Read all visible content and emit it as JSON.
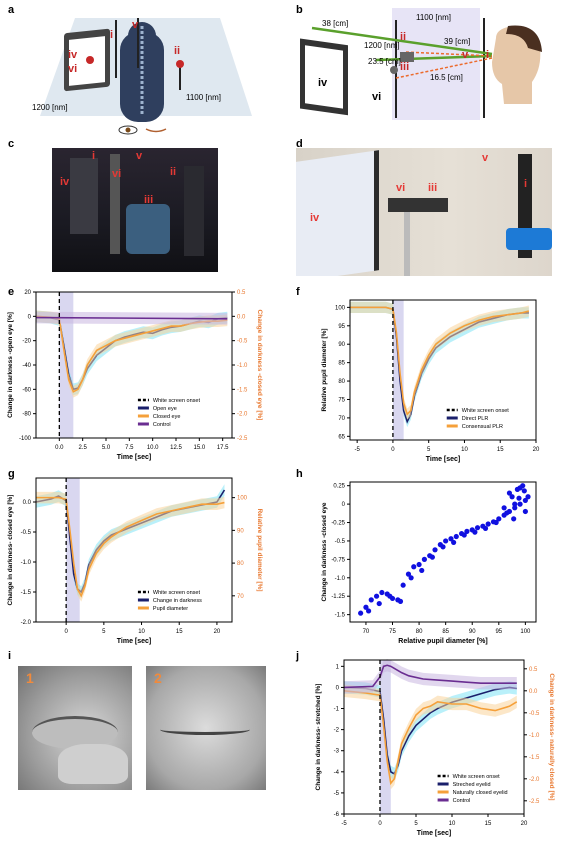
{
  "labels": {
    "a": "a",
    "b": "b",
    "c": "c",
    "d": "d",
    "e": "e",
    "f": "f",
    "g": "g",
    "h": "h",
    "i": "i",
    "j": "j"
  },
  "diagram_a": {
    "dim_left": "1200 [nm]",
    "dim_right": "1100 [nm]",
    "marks": {
      "iv": "iv",
      "vi": "vi",
      "i": "i",
      "v": "v",
      "ii": "ii"
    }
  },
  "diagram_b": {
    "d38": "38 [cm]",
    "d1100": "1100 [nm]",
    "d39": "39 [cm]",
    "d1200": "1200 [nm]",
    "d235": "23.5 [cm]",
    "d165": "16.5 [cm]",
    "marks": {
      "ii": "ii",
      "v": "v",
      "iii": "iii",
      "i": "i",
      "iv": "iv",
      "vi": "vi"
    }
  },
  "photo_c": {
    "marks": {
      "i": "i",
      "v": "v",
      "iv": "iv",
      "vi": "vi",
      "ii": "ii",
      "iii": "iii"
    }
  },
  "photo_d": {
    "marks": {
      "v": "v",
      "iv": "iv",
      "vi": "vi",
      "iii": "iii",
      "i": "i"
    }
  },
  "photo_i": {
    "marks": {
      "one": "1",
      "two": "2"
    }
  },
  "colors": {
    "navy": "#1a1f6b",
    "orange": "#f5a03a",
    "purple": "#6a2d91",
    "cyan": "#7fe3f5",
    "onset_band": "#c9c6ea",
    "scatter": "#1010e0",
    "right_axis_label": "#e8772e"
  },
  "chart_data": [
    {
      "id": "e",
      "type": "line",
      "xlabel": "Time [sec]",
      "ylabel": "Change in darkness -open eye [%]",
      "ylabel_right": "Change in darkness -closed eye [%]",
      "xlim": [
        -2.5,
        18.5
      ],
      "ylim": [
        -100,
        20
      ],
      "ylim_right": [
        -2.5,
        0.5
      ],
      "xticks": [
        "0.0",
        "2.5",
        "5.0",
        "7.5",
        "10.0",
        "12.5",
        "15.0",
        "17.5"
      ],
      "yticks": [
        "20",
        "0",
        "-20",
        "-40",
        "-60",
        "-80",
        "-100"
      ],
      "yticks_right": [
        "0.5",
        "0.0",
        "-0.5",
        "-1.0",
        "-1.5",
        "-2.0",
        "-2.5"
      ],
      "legend": [
        "White screen onset",
        "Open eye",
        "Closed eye",
        "Control"
      ],
      "legend_position": "lower-right",
      "onset_x": 0,
      "band": [
        0,
        1.5
      ],
      "series": [
        {
          "name": "Open eye",
          "axis": "left",
          "x": [
            -2.5,
            -1,
            0,
            0.5,
            1,
            1.5,
            2,
            2.5,
            3,
            4,
            5,
            6,
            7,
            8,
            9,
            10,
            11,
            12,
            13,
            14,
            15,
            16,
            17,
            18
          ],
          "y": [
            0,
            -1,
            -3,
            -25,
            -48,
            -60,
            -59,
            -52,
            -43,
            -32,
            -26,
            -20,
            -17,
            -15,
            -13,
            -14,
            -11,
            -9,
            -8,
            -6,
            -4,
            -5,
            -2,
            -1
          ]
        },
        {
          "name": "Closed eye",
          "axis": "right",
          "x": [
            -2.5,
            -1,
            0,
            0.5,
            1,
            1.5,
            2,
            2.5,
            3,
            4,
            5,
            6,
            7,
            8,
            9,
            10,
            11,
            12,
            13,
            14,
            15,
            16,
            17,
            18
          ],
          "y": [
            0,
            -0.02,
            -0.05,
            -0.7,
            -1.3,
            -1.55,
            -1.5,
            -1.3,
            -1.0,
            -0.7,
            -0.6,
            -0.5,
            -0.45,
            -0.4,
            -0.35,
            -0.3,
            -0.25,
            -0.2,
            -0.2,
            -0.15,
            -0.12,
            -0.1,
            -0.1,
            -0.08
          ]
        },
        {
          "name": "Control",
          "axis": "left",
          "x": [
            -2.5,
            18
          ],
          "y": [
            -1,
            -2
          ]
        }
      ]
    },
    {
      "id": "f",
      "type": "line",
      "xlabel": "Time [sec]",
      "ylabel": "Relative pupil diameter [%]",
      "xlim": [
        -6,
        20
      ],
      "ylim": [
        64,
        102
      ],
      "xticks": [
        "-5",
        "0",
        "5",
        "10",
        "15",
        "20"
      ],
      "yticks": [
        "100",
        "95",
        "90",
        "85",
        "80",
        "75",
        "70",
        "65"
      ],
      "legend": [
        "White screen onset",
        "Direct PLR",
        "Consensual PLR"
      ],
      "legend_position": "lower-right",
      "onset_x": 0,
      "band": [
        0,
        1.5
      ],
      "series": [
        {
          "name": "Direct PLR",
          "x": [
            -6,
            -3,
            -1,
            0,
            0.5,
            1,
            1.5,
            2,
            2.5,
            3,
            4,
            5,
            6,
            8,
            10,
            12,
            14,
            16,
            18,
            19
          ],
          "y": [
            100,
            100,
            100,
            99.5,
            92,
            80,
            72,
            69,
            71,
            76,
            82,
            86,
            89,
            92,
            94,
            96,
            97,
            98,
            98.5,
            98.5
          ]
        },
        {
          "name": "Consensual PLR",
          "x": [
            -6,
            -3,
            -1,
            0,
            0.5,
            1,
            1.5,
            2,
            2.5,
            3,
            4,
            5,
            6,
            8,
            10,
            12,
            14,
            16,
            18,
            19
          ],
          "y": [
            100,
            100,
            100,
            99.5,
            93,
            82,
            74,
            71,
            72,
            77,
            83,
            87,
            90,
            93,
            95,
            96.5,
            97.5,
            98,
            98.5,
            99
          ]
        }
      ]
    },
    {
      "id": "g",
      "type": "line",
      "xlabel": "Time [sec]",
      "ylabel": "Change in darkness- closed eye [%]",
      "ylabel_right": "Relative pupil diameter [%]",
      "xlim": [
        -4,
        22
      ],
      "ylim": [
        -2.0,
        0.4
      ],
      "ylim_right": [
        62,
        106
      ],
      "xticks": [
        "0",
        "5",
        "10",
        "15",
        "20"
      ],
      "yticks": [
        "0.0",
        "-0.5",
        "-1.0",
        "-1.5",
        "-2.0"
      ],
      "yticks_right": [
        "100",
        "90",
        "80",
        "70"
      ],
      "legend": [
        "White screen onset",
        "Change in darkness",
        "Pupil diameter"
      ],
      "legend_position": "lower-right",
      "onset_x": 0,
      "band": [
        0,
        1.8
      ],
      "series": [
        {
          "name": "Change in darkness",
          "axis": "left",
          "x": [
            -4,
            -2,
            -1,
            0,
            0.5,
            1,
            1.5,
            2,
            2.5,
            3,
            4,
            5,
            6,
            8,
            10,
            12,
            14,
            16,
            18,
            20,
            21
          ],
          "y": [
            0,
            0.05,
            0.1,
            0.02,
            -0.6,
            -1.2,
            -1.45,
            -1.5,
            -1.35,
            -1.05,
            -0.8,
            -0.65,
            -0.55,
            -0.45,
            -0.35,
            -0.25,
            -0.15,
            -0.1,
            -0.05,
            0,
            0.2
          ]
        },
        {
          "name": "Pupil diameter",
          "axis": "right",
          "x": [
            -4,
            -2,
            -1,
            0,
            0.5,
            1,
            1.5,
            2,
            2.5,
            3,
            4,
            5,
            6,
            8,
            10,
            12,
            14,
            16,
            18,
            20,
            21
          ],
          "y": [
            100,
            100,
            100,
            99.5,
            90,
            80,
            72,
            70,
            73,
            78,
            83,
            86,
            88,
            91,
            93,
            95,
            96,
            97,
            98,
            98,
            98.5
          ]
        }
      ]
    },
    {
      "id": "h",
      "type": "scatter",
      "xlabel": "Relative pupil diameter [%]",
      "ylabel": "Change in darkness -closed eye",
      "xlim": [
        67,
        102
      ],
      "ylim": [
        -1.6,
        0.3
      ],
      "xticks": [
        "70",
        "75",
        "80",
        "85",
        "90",
        "95",
        "100"
      ],
      "yticks": [
        "0.25",
        "0",
        "-0.25",
        "-0.5",
        "-0.75",
        "-1.0",
        "-1.25",
        "-1.5"
      ],
      "series": [
        {
          "name": "",
          "x": [
            69,
            70,
            71,
            72,
            73,
            74,
            75,
            76,
            77,
            78,
            79,
            80,
            81,
            82,
            83,
            84,
            85,
            86,
            87,
            88,
            89,
            90,
            91,
            92,
            93,
            94,
            95,
            96,
            97,
            98,
            99,
            100,
            70.5,
            72.5,
            74.5,
            76.5,
            78.5,
            80.5,
            82.5,
            84.5,
            86.5,
            88.5,
            90.5,
            92.5,
            94.5,
            96.5,
            97.5,
            98.5,
            99.5,
            100.5,
            96,
            97,
            98,
            99,
            100,
            97.8,
            98.8,
            99.8
          ],
          "y": [
            -1.48,
            -1.4,
            -1.3,
            -1.25,
            -1.2,
            -1.22,
            -1.28,
            -1.3,
            -1.1,
            -0.95,
            -0.85,
            -0.82,
            -0.75,
            -0.7,
            -0.62,
            -0.55,
            -0.5,
            -0.47,
            -0.44,
            -0.4,
            -0.37,
            -0.35,
            -0.32,
            -0.3,
            -0.27,
            -0.24,
            -0.2,
            -0.15,
            -0.1,
            -0.05,
            0.0,
            0.05,
            -1.45,
            -1.35,
            -1.25,
            -1.32,
            -1.0,
            -0.9,
            -0.72,
            -0.58,
            -0.52,
            -0.42,
            -0.38,
            -0.33,
            -0.25,
            -0.12,
            0.1,
            0.2,
            0.25,
            0.1,
            -0.05,
            0.15,
            0.0,
            0.22,
            -0.1,
            -0.2,
            0.08,
            0.18
          ]
        }
      ]
    },
    {
      "id": "j",
      "type": "line",
      "xlabel": "Time [sec]",
      "ylabel": "Change in darkness- stretched [%]",
      "ylabel_right": "Change in darkness- naturally closed [%]",
      "xlim": [
        -5,
        20
      ],
      "ylim": [
        -6,
        1.3
      ],
      "ylim_right": [
        -2.8,
        0.7
      ],
      "xticks": [
        "-5",
        "0",
        "5",
        "10",
        "15",
        "20"
      ],
      "yticks": [
        "1",
        "0",
        "-1",
        "-2",
        "-3",
        "-4",
        "-5",
        "-6"
      ],
      "yticks_right": [
        "0.5",
        "0.0",
        "-0.5",
        "-1.0",
        "-1.5",
        "-2.0",
        "-2.5"
      ],
      "legend": [
        "White screen onset",
        "Streched eyelid",
        "Naturally closed eyelid",
        "Control"
      ],
      "legend_position": "lower-right",
      "onset_x": 0,
      "band": [
        0,
        1.5
      ],
      "series": [
        {
          "name": "Streched eyelid",
          "axis": "left",
          "x": [
            -5,
            -2,
            0,
            0.5,
            1,
            1.5,
            2,
            2.5,
            3,
            4,
            5,
            6,
            7,
            8,
            10,
            12,
            14,
            16,
            18,
            19
          ],
          "y": [
            0,
            -0.05,
            -0.2,
            -1.5,
            -3.2,
            -4,
            -4.1,
            -3.7,
            -3,
            -2.3,
            -1.8,
            -1.5,
            -1.2,
            -1,
            -0.7,
            -0.5,
            -0.3,
            -0.1,
            0,
            -0.05
          ]
        },
        {
          "name": "Naturally closed eyelid",
          "axis": "right",
          "x": [
            -5,
            -2,
            0,
            0.5,
            1,
            1.5,
            2,
            2.5,
            3,
            4,
            5,
            6,
            7,
            8,
            10,
            12,
            14,
            16,
            18,
            19
          ],
          "y": [
            0,
            -0.05,
            -0.1,
            -0.8,
            -1.6,
            -2.1,
            -2.0,
            -1.6,
            -1.2,
            -0.85,
            -0.55,
            -0.4,
            -0.35,
            -0.25,
            -0.3,
            -0.3,
            -0.4,
            -0.45,
            -0.35,
            -0.25
          ]
        },
        {
          "name": "Control",
          "axis": "left",
          "x": [
            -5,
            -1,
            0,
            0.5,
            1,
            1.5,
            2,
            3,
            4,
            6,
            8,
            10,
            12,
            14,
            16,
            18,
            19
          ],
          "y": [
            0,
            0.05,
            0.5,
            1.0,
            1.05,
            1.0,
            0.9,
            0.7,
            0.55,
            0.4,
            0.35,
            0.3,
            0.25,
            0.2,
            0.2,
            0.2,
            0.2
          ]
        }
      ]
    }
  ]
}
